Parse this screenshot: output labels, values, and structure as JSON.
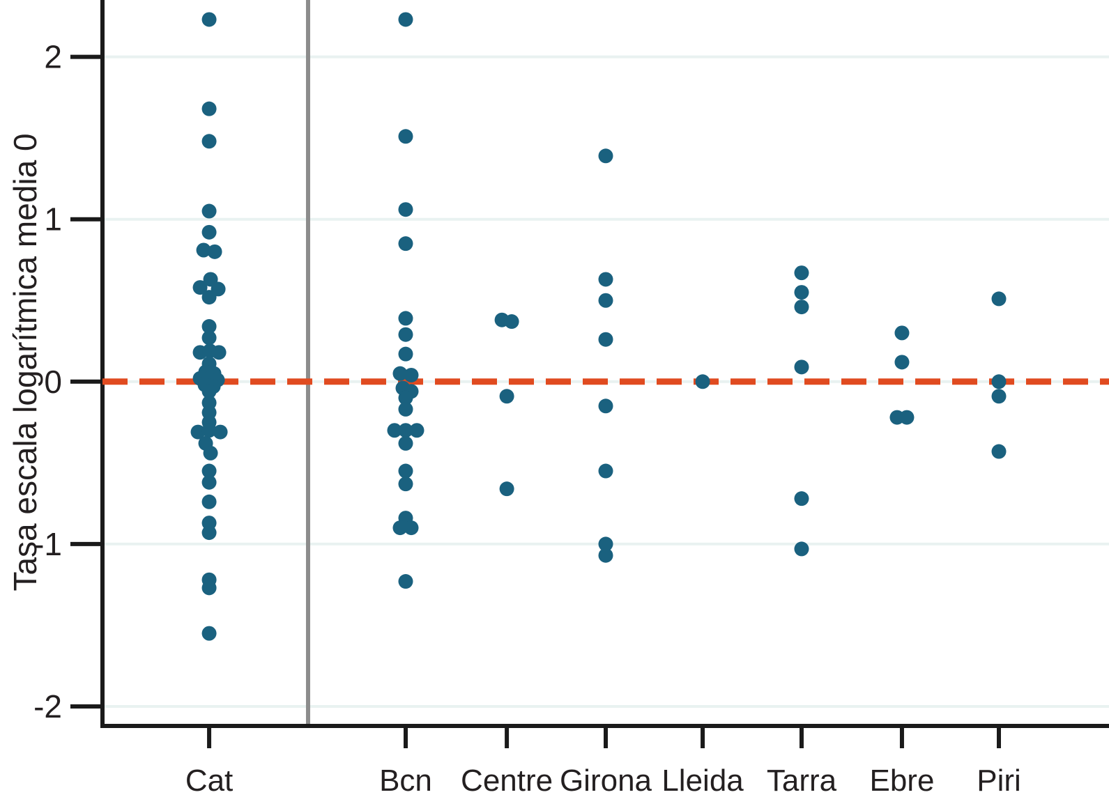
{
  "chart_data": {
    "type": "scatter",
    "variant": "strip-plot",
    "title": "",
    "xlabel": "",
    "ylabel": "Tasa escala logarítmica media 0",
    "ylim": [
      -2.12,
      2.35
    ],
    "yticks": [
      2,
      1,
      0,
      -1,
      -2
    ],
    "ytick_labels": [
      "2",
      "1",
      "0",
      "-1",
      "-2"
    ],
    "categories": [
      "Cat",
      "Bcn",
      "Centre",
      "Girona",
      "Lleida",
      "Tarra",
      "Ebre",
      "Piri"
    ],
    "grid": true,
    "legend": "none",
    "reference_line": {
      "y": 0,
      "style": "dashed",
      "color": "#e04b20"
    },
    "separator": {
      "after_category": "Cat",
      "color": "#8c8c8c"
    },
    "colors": {
      "point": "#1a617f",
      "grid": "#e9f2f1",
      "axis": "#1a1a1a",
      "text": "#231f20",
      "zero_line": "#e04b20",
      "separator": "#8c8c8c",
      "background": "#ffffff"
    },
    "layout_hints": {
      "x_positions_frac": {
        "Cat": 0.1886,
        "Bcn": 0.3658,
        "Centre": 0.457,
        "Girona": 0.5462,
        "Lleida": 0.6336,
        "Tarra": 0.7228,
        "Ebre": 0.8133,
        "Piri": 0.9007
      },
      "separator_x_frac": 0.2778,
      "point_radius_px": 10.5,
      "jitter_note": "each point = [value, horizontal_jitter_px]"
    },
    "series": [
      {
        "name": "Cat",
        "points": [
          [
            2.23,
            0
          ],
          [
            1.68,
            0
          ],
          [
            1.48,
            0
          ],
          [
            1.05,
            0
          ],
          [
            0.92,
            0
          ],
          [
            0.81,
            -8
          ],
          [
            0.8,
            8
          ],
          [
            0.63,
            2
          ],
          [
            0.58,
            -13
          ],
          [
            0.57,
            13
          ],
          [
            0.52,
            0
          ],
          [
            0.34,
            0
          ],
          [
            0.27,
            0
          ],
          [
            0.18,
            -13
          ],
          [
            0.19,
            1
          ],
          [
            0.18,
            14
          ],
          [
            0.11,
            0
          ],
          [
            0.06,
            -5
          ],
          [
            0.05,
            7
          ],
          [
            0.02,
            -13
          ],
          [
            0.02,
            0
          ],
          [
            0.01,
            12
          ],
          [
            -0.02,
            -6
          ],
          [
            -0.03,
            6
          ],
          [
            -0.06,
            0
          ],
          [
            -0.13,
            0
          ],
          [
            -0.19,
            0
          ],
          [
            -0.25,
            0
          ],
          [
            -0.31,
            -16
          ],
          [
            -0.3,
            0
          ],
          [
            -0.31,
            16
          ],
          [
            -0.38,
            -5
          ],
          [
            -0.44,
            2
          ],
          [
            -0.55,
            0
          ],
          [
            -0.62,
            0
          ],
          [
            -0.74,
            0
          ],
          [
            -0.87,
            0
          ],
          [
            -0.93,
            0
          ],
          [
            -1.22,
            0
          ],
          [
            -1.27,
            0
          ],
          [
            -1.55,
            0
          ]
        ]
      },
      {
        "name": "Bcn",
        "points": [
          [
            2.23,
            0
          ],
          [
            1.51,
            0
          ],
          [
            1.06,
            0
          ],
          [
            0.85,
            0
          ],
          [
            0.39,
            0
          ],
          [
            0.29,
            0
          ],
          [
            0.17,
            0
          ],
          [
            0.05,
            -8
          ],
          [
            0.04,
            8
          ],
          [
            -0.04,
            -4
          ],
          [
            -0.06,
            8
          ],
          [
            -0.1,
            0
          ],
          [
            -0.17,
            0
          ],
          [
            -0.3,
            -16
          ],
          [
            -0.3,
            0
          ],
          [
            -0.3,
            16
          ],
          [
            -0.38,
            0
          ],
          [
            -0.55,
            0
          ],
          [
            -0.63,
            0
          ],
          [
            -0.84,
            0
          ],
          [
            -0.9,
            -8
          ],
          [
            -0.9,
            8
          ],
          [
            -1.23,
            0
          ]
        ]
      },
      {
        "name": "Centre",
        "points": [
          [
            0.38,
            -7
          ],
          [
            0.37,
            7
          ],
          [
            -0.09,
            0
          ],
          [
            -0.66,
            0
          ]
        ]
      },
      {
        "name": "Girona",
        "points": [
          [
            1.39,
            0
          ],
          [
            0.63,
            0
          ],
          [
            0.5,
            0
          ],
          [
            0.26,
            0
          ],
          [
            -0.15,
            0
          ],
          [
            -0.55,
            0
          ],
          [
            -1.0,
            0
          ],
          [
            -1.07,
            0
          ]
        ]
      },
      {
        "name": "Lleida",
        "points": [
          [
            0.0,
            0
          ]
        ]
      },
      {
        "name": "Tarra",
        "points": [
          [
            0.67,
            0
          ],
          [
            0.55,
            0
          ],
          [
            0.46,
            0
          ],
          [
            0.09,
            0
          ],
          [
            -0.72,
            0
          ],
          [
            -1.03,
            0
          ]
        ]
      },
      {
        "name": "Ebre",
        "points": [
          [
            0.3,
            0
          ],
          [
            0.12,
            0
          ],
          [
            -0.22,
            -7
          ],
          [
            -0.22,
            7
          ]
        ]
      },
      {
        "name": "Piri",
        "points": [
          [
            0.51,
            0
          ],
          [
            0.0,
            0
          ],
          [
            -0.09,
            0
          ],
          [
            -0.43,
            0
          ]
        ]
      }
    ]
  }
}
